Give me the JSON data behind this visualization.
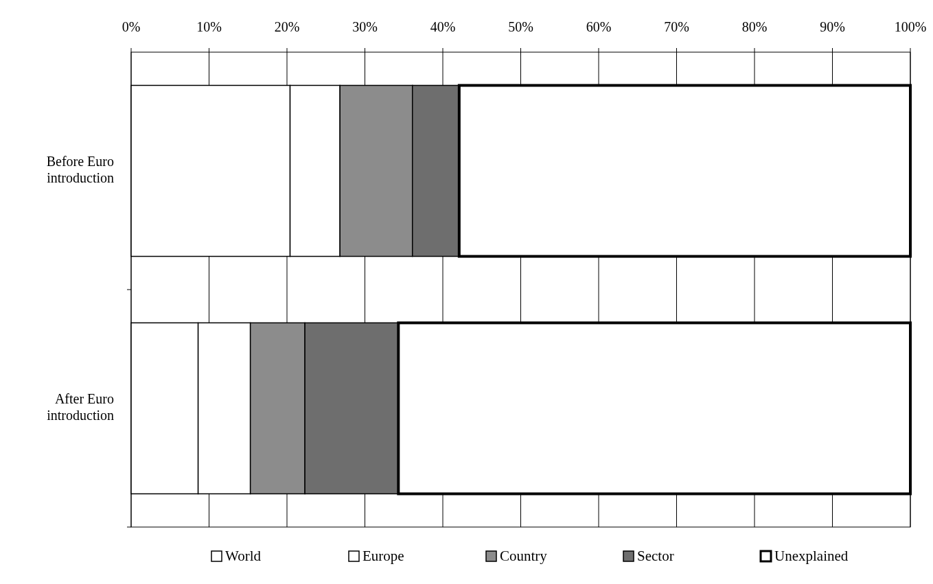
{
  "chart_data": {
    "type": "bar",
    "orientation": "horizontal",
    "stacked": true,
    "categories": [
      "Before Euro introduction",
      "After Euro introduction"
    ],
    "series": [
      {
        "name": "World",
        "color": "#ffffff",
        "values": [
          20.4,
          8.6
        ]
      },
      {
        "name": "Europe",
        "color": "#ffffff",
        "values": [
          6.4,
          6.7
        ]
      },
      {
        "name": "Country",
        "color": "#8c8c8c",
        "values": [
          9.3,
          7.0
        ]
      },
      {
        "name": "Sector",
        "color": "#6e6e6e",
        "values": [
          6.0,
          12.0
        ]
      },
      {
        "name": "Unexplained",
        "color": "#ffffff",
        "values": [
          57.9,
          65.7
        ]
      }
    ],
    "xlim": [
      0,
      100
    ],
    "xticks": [
      {
        "value": 0,
        "label": "0%"
      },
      {
        "value": 10,
        "label": "10%"
      },
      {
        "value": 20,
        "label": "20%"
      },
      {
        "value": 30,
        "label": "30%"
      },
      {
        "value": 40,
        "label": "40%"
      },
      {
        "value": 50,
        "label": "50%"
      },
      {
        "value": 60,
        "label": "60%"
      },
      {
        "value": 70,
        "label": "70%"
      },
      {
        "value": 80,
        "label": "80%"
      },
      {
        "value": 90,
        "label": "90%"
      },
      {
        "value": 100,
        "label": "100%"
      }
    ],
    "grid": "x",
    "legend": "bottom"
  }
}
